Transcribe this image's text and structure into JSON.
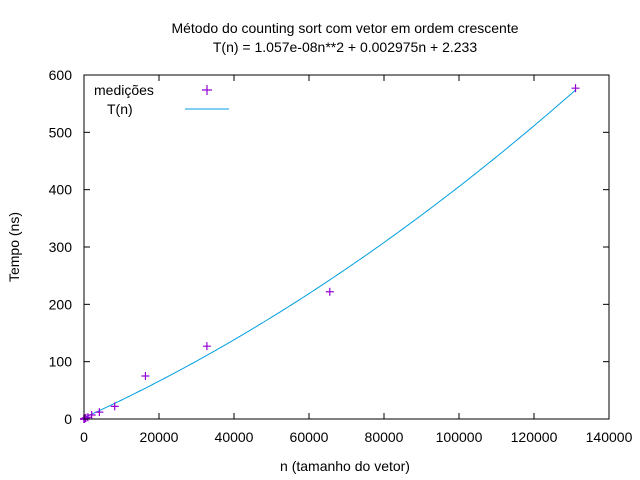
{
  "chart_data": {
    "type": "scatter",
    "title": "Método do counting sort com vetor em ordem crescente",
    "subtitle": "T(n) = 1.057e-08n**2 + 0.002975n + 2.233",
    "xlabel": "n (tamanho do vetor)",
    "ylabel": "Tempo (ns)",
    "xlim": [
      0,
      140000
    ],
    "ylim": [
      0,
      600
    ],
    "x_ticks": [
      0,
      20000,
      40000,
      60000,
      80000,
      100000,
      120000,
      140000
    ],
    "y_ticks": [
      0,
      100,
      200,
      300,
      400,
      500,
      600
    ],
    "grid": false,
    "legend_position": "top-left",
    "series": [
      {
        "name": "medições",
        "kind": "points",
        "marker": "+",
        "color": "#9400d3",
        "x": [
          2,
          4,
          8,
          16,
          32,
          64,
          128,
          256,
          512,
          1024,
          2048,
          4096,
          8192,
          16384,
          32768,
          65536,
          131072
        ],
        "y": [
          0,
          0,
          0,
          0,
          0,
          0,
          1,
          1,
          2,
          3,
          7,
          12,
          22,
          75,
          127,
          222,
          577
        ]
      },
      {
        "name": "T(n)",
        "kind": "line",
        "color": "#009ee0",
        "formula": {
          "a": 1.057e-08,
          "b": 0.002975,
          "c": 2.233
        },
        "x_range": [
          0,
          131072
        ]
      }
    ]
  }
}
